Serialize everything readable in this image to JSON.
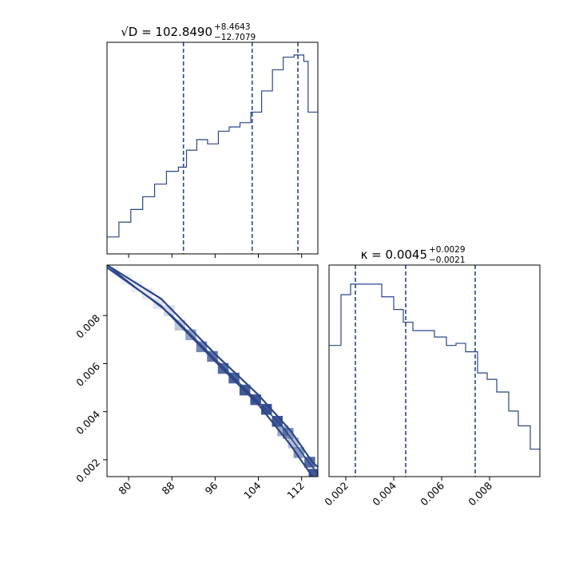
{
  "chart_data": [
    {
      "type": "histogram",
      "panel": "top-left",
      "title": {
        "base": "√D = 102.8490",
        "sup": "+8.4643",
        "sub": "−12.7079"
      },
      "xlim": [
        76,
        115
      ],
      "bins": [
        [
          76,
          78.2,
          0.08
        ],
        [
          78.2,
          80.4,
          0.15
        ],
        [
          80.4,
          82.6,
          0.21
        ],
        [
          82.6,
          84.8,
          0.27
        ],
        [
          84.8,
          87,
          0.33
        ],
        [
          87,
          89.2,
          0.39
        ],
        [
          89.2,
          90.7,
          0.41
        ],
        [
          90.7,
          92.6,
          0.49
        ],
        [
          92.6,
          94.6,
          0.54
        ],
        [
          94.6,
          96.6,
          0.52
        ],
        [
          96.6,
          98.6,
          0.58
        ],
        [
          98.6,
          100.6,
          0.6
        ],
        [
          100.6,
          102.6,
          0.62
        ],
        [
          102.6,
          104.6,
          0.67
        ],
        [
          104.6,
          106.6,
          0.77
        ],
        [
          106.6,
          108.6,
          0.87
        ],
        [
          108.6,
          110.6,
          0.93
        ],
        [
          110.6,
          112.4,
          0.94
        ],
        [
          112.4,
          113.2,
          0.91
        ],
        [
          113.2,
          115,
          0.67
        ]
      ],
      "quantiles": [
        90.14,
        102.85,
        111.31
      ]
    },
    {
      "type": "heatmap",
      "panel": "bottom-left",
      "xlim": [
        76,
        115
      ],
      "ylim": [
        0.0013,
        0.0101
      ],
      "xticks": [
        "80",
        "88",
        "96",
        "104",
        "112"
      ],
      "yticks": [
        "0.002",
        "0.004",
        "0.006",
        "0.008"
      ],
      "cells": [
        [
          77.5,
          0.0098,
          0.05
        ],
        [
          79.5,
          0.0095,
          0.08
        ],
        [
          81.5,
          0.0092,
          0.1
        ],
        [
          83.5,
          0.0089,
          0.12
        ],
        [
          85.5,
          0.0085,
          0.15
        ],
        [
          87.5,
          0.0082,
          0.2
        ],
        [
          89.5,
          0.0076,
          0.3
        ],
        [
          91.5,
          0.0072,
          0.5
        ],
        [
          93.5,
          0.0067,
          0.65
        ],
        [
          95.5,
          0.0063,
          0.72
        ],
        [
          97.5,
          0.0058,
          0.8
        ],
        [
          99.5,
          0.0054,
          0.85
        ],
        [
          101.5,
          0.0049,
          0.88
        ],
        [
          103.5,
          0.0045,
          0.9
        ],
        [
          105.5,
          0.0041,
          0.92
        ],
        [
          107.5,
          0.0036,
          0.9
        ],
        [
          108.5,
          0.0032,
          0.45
        ],
        [
          109.5,
          0.0031,
          0.6
        ],
        [
          110.5,
          0.0027,
          0.35
        ],
        [
          111.5,
          0.0023,
          0.55
        ],
        [
          113.5,
          0.0019,
          0.8
        ],
        [
          114.3,
          0.0014,
          0.9
        ]
      ],
      "contour_upper": [
        [
          76,
          0.0101
        ],
        [
          86,
          0.0087
        ],
        [
          96,
          0.0064
        ],
        [
          104,
          0.0047
        ],
        [
          110,
          0.0032
        ],
        [
          114,
          0.0019
        ],
        [
          115,
          0.0017
        ]
      ],
      "contour_lower": [
        [
          76,
          0.01
        ],
        [
          86,
          0.0084
        ],
        [
          96,
          0.0061
        ],
        [
          104,
          0.0043
        ],
        [
          110,
          0.0026
        ],
        [
          114,
          0.0013
        ]
      ],
      "center_line": [
        [
          76,
          0.0101
        ],
        [
          88,
          0.008
        ],
        [
          100,
          0.0053
        ],
        [
          108,
          0.0035
        ],
        [
          112,
          0.0023
        ],
        [
          115,
          0.0014
        ]
      ]
    },
    {
      "type": "histogram",
      "panel": "bottom-right",
      "title": {
        "base": "κ = 0.0045",
        "sup": "+0.0029",
        "sub": "−0.0021"
      },
      "xlim": [
        0.0013,
        0.0101
      ],
      "xticks": [
        "0.002",
        "0.004",
        "0.006",
        "0.008"
      ],
      "bins": [
        [
          0.0013,
          0.0018,
          0.62
        ],
        [
          0.0018,
          0.0022,
          0.86
        ],
        [
          0.0022,
          0.0027,
          0.91
        ],
        [
          0.0027,
          0.0031,
          0.91
        ],
        [
          0.0031,
          0.0035,
          0.91
        ],
        [
          0.0035,
          0.004,
          0.85
        ],
        [
          0.004,
          0.0044,
          0.79
        ],
        [
          0.0044,
          0.0048,
          0.73
        ],
        [
          0.0048,
          0.0053,
          0.69
        ],
        [
          0.0053,
          0.0057,
          0.69
        ],
        [
          0.0057,
          0.0062,
          0.66
        ],
        [
          0.0062,
          0.0066,
          0.62
        ],
        [
          0.0066,
          0.007,
          0.63
        ],
        [
          0.007,
          0.0075,
          0.59
        ],
        [
          0.0075,
          0.0079,
          0.49
        ],
        [
          0.0079,
          0.0083,
          0.46
        ],
        [
          0.0083,
          0.0088,
          0.4
        ],
        [
          0.0088,
          0.0092,
          0.31
        ],
        [
          0.0092,
          0.0097,
          0.24
        ],
        [
          0.0097,
          0.0101,
          0.13
        ]
      ],
      "quantiles": [
        0.0024,
        0.0045,
        0.0074
      ]
    }
  ]
}
